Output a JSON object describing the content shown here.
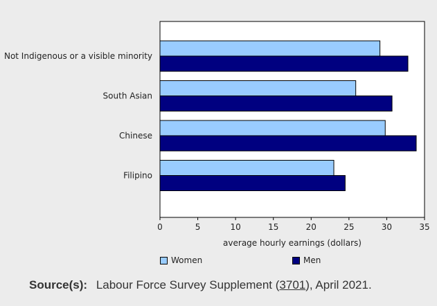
{
  "chart_data": {
    "type": "bar",
    "orientation": "horizontal",
    "categories": [
      "Not Indigenous or a visible minority",
      "South Asian",
      "Chinese",
      "Filipino"
    ],
    "series": [
      {
        "name": "Women",
        "color": "#99ccff",
        "values": [
          29.1,
          25.9,
          29.8,
          23.0
        ]
      },
      {
        "name": "Men",
        "color": "#000080",
        "values": [
          32.8,
          30.7,
          33.9,
          24.5
        ]
      }
    ],
    "xlabel": "average hourly earnings (dollars)",
    "xlim": [
      0,
      35
    ],
    "xticks": [
      0,
      5,
      10,
      15,
      20,
      25,
      30,
      35
    ],
    "grid": false,
    "legend": "bottom"
  },
  "source": {
    "label": "Source(s):",
    "text_before": "Labour Force Survey Supplement (",
    "link": "3701",
    "text_after": "), April 2021."
  }
}
